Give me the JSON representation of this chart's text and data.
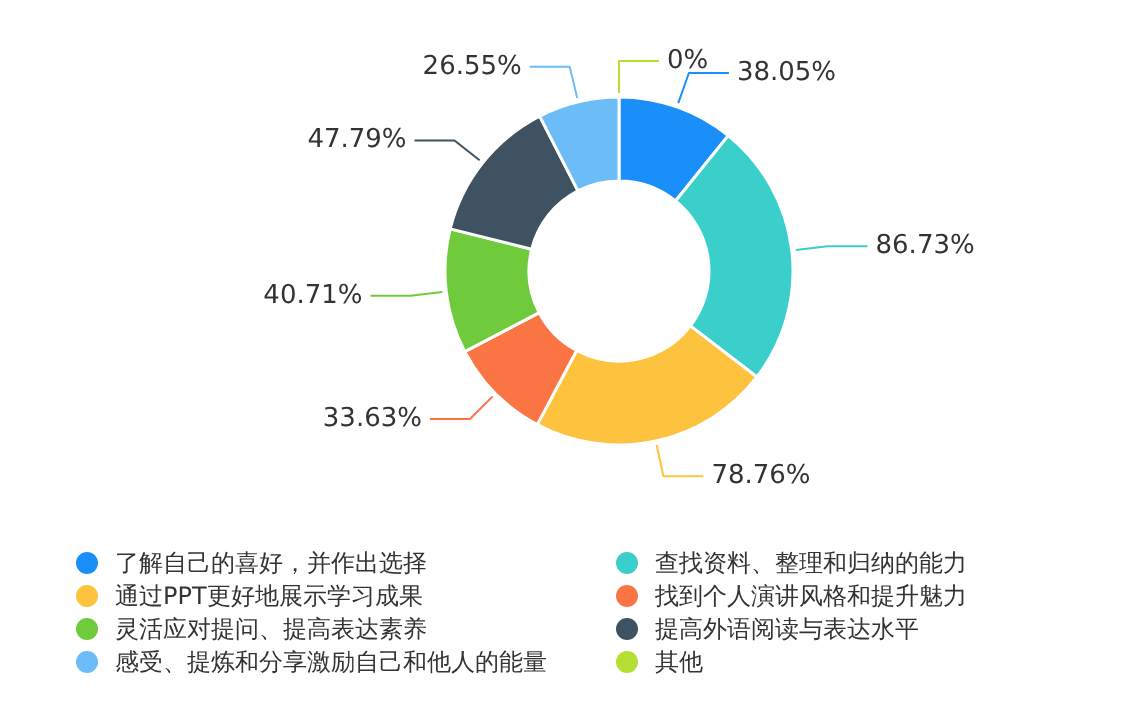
{
  "chart_data": {
    "type": "donut",
    "categories": [
      "了解自己的喜好，并作出选择",
      "查找资料、整理和归纳的能力",
      "通过PPT更好地展示学习成果",
      "找到个人演讲风格和提升魅力",
      "灵活应对提问、提高表达素养",
      "提高外语阅读与表达水平",
      "感受、提炼和分享激励自己和他人的能量",
      "其他"
    ],
    "values": [
      38.05,
      86.73,
      78.76,
      33.63,
      40.71,
      47.79,
      26.55,
      0
    ],
    "value_labels": [
      "38.05%",
      "86.73%",
      "78.76%",
      "33.63%",
      "40.71%",
      "47.79%",
      "26.55%",
      "0%"
    ],
    "colors": [
      "#1a8ffa",
      "#3bcfcb",
      "#fdc23e",
      "#fb7443",
      "#6fcb3c",
      "#3e5261",
      "#6cbcf8",
      "#b6df35"
    ],
    "legend": "bottom"
  }
}
